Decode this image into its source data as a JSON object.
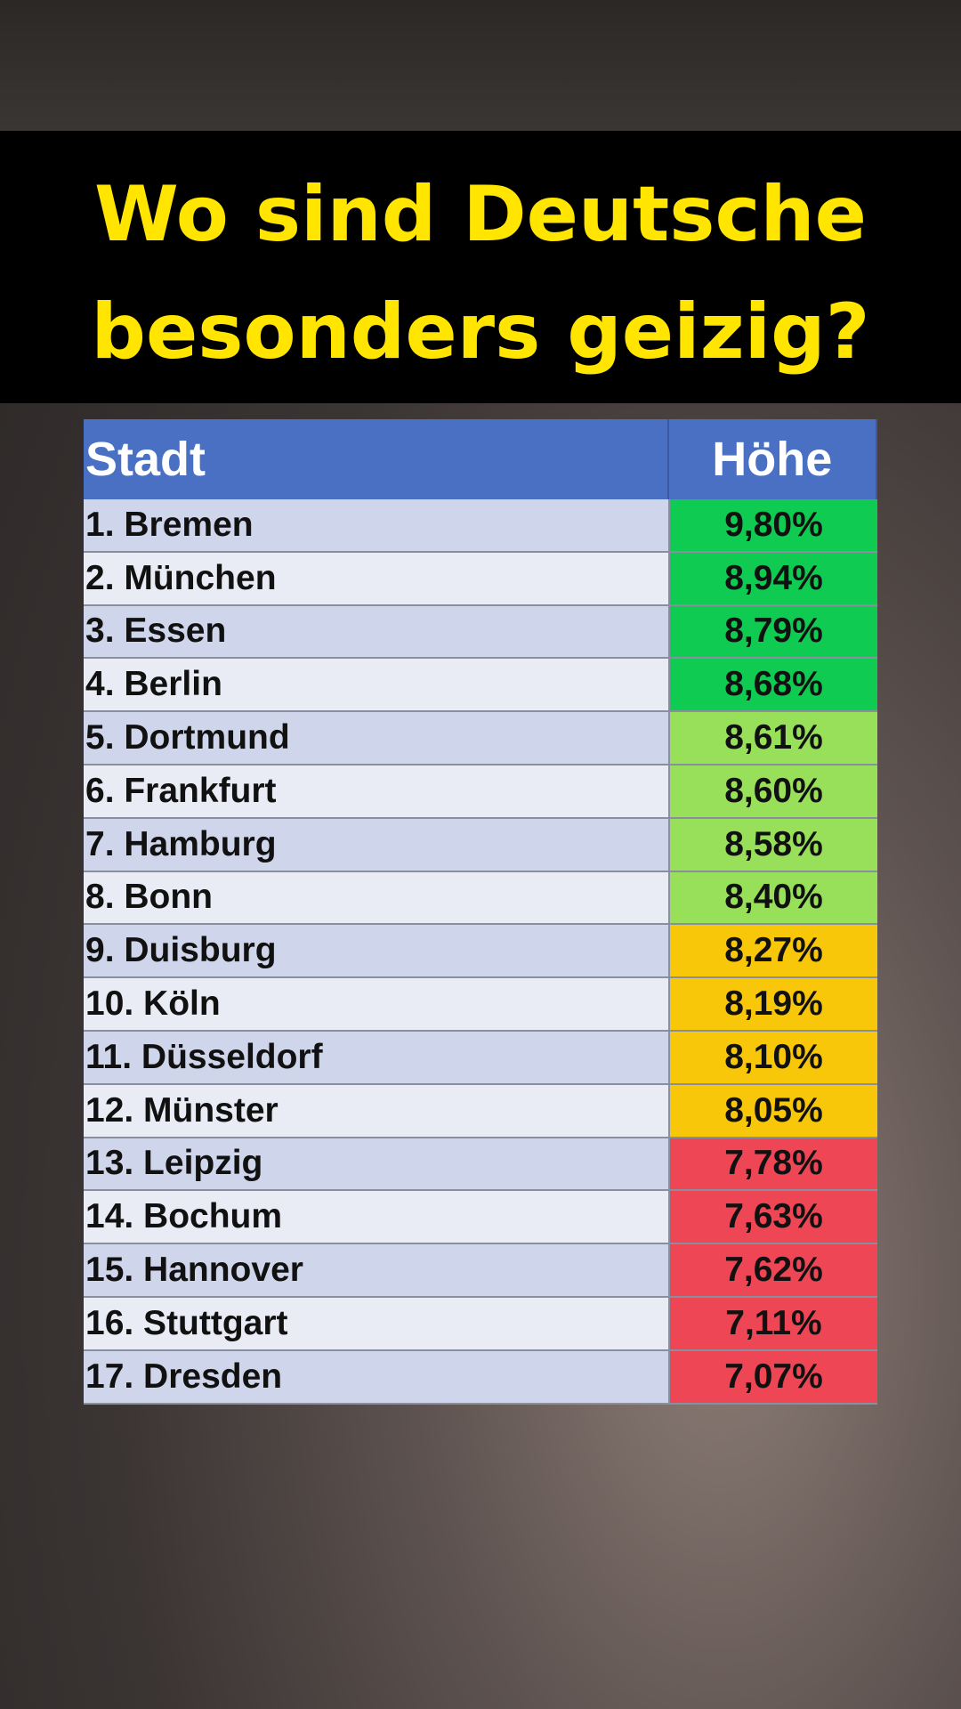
{
  "header": {
    "title_lines": [
      "Wo sind Deutsche",
      "besonders geizig?"
    ]
  },
  "table": {
    "columns": [
      "Stadt",
      "Höhe"
    ],
    "rows": [
      [
        "1. Bremen",
        "9,80%"
      ],
      [
        "2. München",
        "8,94%"
      ],
      [
        "3. Essen",
        "8,79%"
      ],
      [
        "4. Berlin",
        "8,68%"
      ],
      [
        "5. Dortmund",
        "8,61%"
      ],
      [
        "6. Frankfurt",
        "8,60%"
      ],
      [
        "7. Hamburg",
        "8,58%"
      ],
      [
        "8. Bonn",
        "8,40%"
      ],
      [
        "9. Duisburg",
        "8,27%"
      ],
      [
        "10. Köln",
        "8,19%"
      ],
      [
        "11. Düsseldorf",
        "8,10%"
      ],
      [
        "12. Münster",
        "8,05%"
      ],
      [
        "13. Leipzig",
        "7,78%"
      ],
      [
        "14. Bochum",
        "7,63%"
      ],
      [
        "15. Hannover",
        "7,62%"
      ],
      [
        "16. Stuttgart",
        "7,11%"
      ],
      [
        "17. Dresden",
        "7,07%"
      ]
    ],
    "value_colors": [
      "#0fcb52",
      "#0fcb52",
      "#0fcb52",
      "#0fcb52",
      "#98e05a",
      "#98e05a",
      "#98e05a",
      "#98e05a",
      "#f8c70a",
      "#f8c70a",
      "#f8c70a",
      "#f8c70a",
      "#ef4655",
      "#ef4655",
      "#ef4655",
      "#ef4655",
      "#ef4655"
    ]
  }
}
